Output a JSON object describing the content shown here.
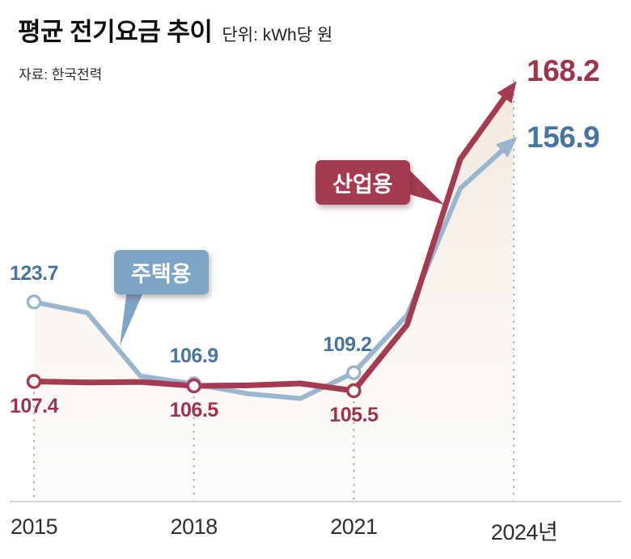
{
  "header": {
    "title": "평균 전기요금 추이",
    "unit": "단위: kWh당 원",
    "source": "자료: 한국전력"
  },
  "callouts": {
    "residential": {
      "label": "주택용",
      "box_color": "#7ea4c6"
    },
    "industrial": {
      "label": "산업용",
      "box_color": "#a43b51"
    }
  },
  "colors": {
    "area_top": "#ecdccb",
    "area_bottom": "#f8f3ec",
    "axis": "#c6c6c6",
    "dash": "#9e9e9e",
    "tick_text": "#2f2f2f",
    "title_text": "#0f0f0f",
    "source_text": "#2b2b2b"
  },
  "chart_data": {
    "type": "line",
    "title": "평균 전기요금 추이",
    "unit_label": "단위: kWh당 원",
    "source": "자료: 한국전력",
    "x": [
      2015,
      2016,
      2017,
      2018,
      2019,
      2020,
      2021,
      2022,
      2023,
      2024
    ],
    "x_ticks": [
      {
        "x": 2015,
        "label": "2015",
        "dx": 0
      },
      {
        "x": 2018,
        "label": "2018",
        "dx": 0
      },
      {
        "x": 2021,
        "label": "2021",
        "dx": 0
      },
      {
        "x": 2024,
        "label": "2024년",
        "dx": 13
      }
    ],
    "ylim": [
      95,
      175
    ],
    "grid": false,
    "legend": "callout-labels-on-chart",
    "series": [
      {
        "role": "residential",
        "name": "주택용",
        "line_color": "#9ab5d0",
        "label_color": "#47759f",
        "values": [
          123.7,
          121.5,
          108.5,
          106.9,
          104.9,
          103.9,
          109.2,
          121.0,
          147.0,
          156.9
        ],
        "marker_years": [
          2015,
          2018,
          2021
        ],
        "labels": [
          {
            "x": 2015,
            "text": "123.7",
            "placement": "above"
          },
          {
            "x": 2018,
            "text": "106.9",
            "placement": "above"
          },
          {
            "x": 2021,
            "text": "109.2",
            "placement": "above",
            "dx": -8
          },
          {
            "x": 2024,
            "text": "156.9",
            "placement": "end",
            "dy": -3
          }
        ]
      },
      {
        "role": "industrial",
        "name": "산업용",
        "line_color": "#a43b51",
        "label_color": "#9e3349",
        "values": [
          107.4,
          107.2,
          107.3,
          106.5,
          106.6,
          107.0,
          105.5,
          119.0,
          153.0,
          168.2
        ],
        "marker_years": [
          2015,
          2018,
          2021
        ],
        "labels": [
          {
            "x": 2015,
            "text": "107.4",
            "placement": "below"
          },
          {
            "x": 2018,
            "text": "106.5",
            "placement": "below"
          },
          {
            "x": 2021,
            "text": "105.5",
            "placement": "below"
          },
          {
            "x": 2024,
            "text": "168.2",
            "placement": "end",
            "dy": -17
          }
        ]
      }
    ]
  }
}
